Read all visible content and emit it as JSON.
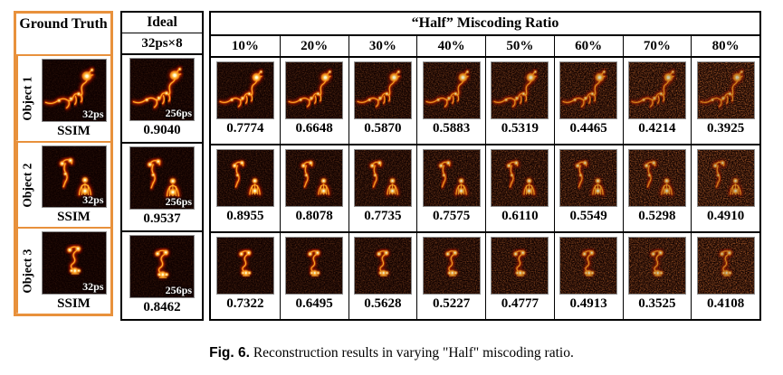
{
  "ground_truth": {
    "header": "Ground Truth",
    "object_labels": [
      "Object 1",
      "Object 2",
      "Object 3"
    ],
    "ssim_label": "SSIM",
    "exposure_label": "32ps"
  },
  "ideal": {
    "header": "Ideal",
    "subheader": "32ps×8",
    "exposure_label": "256ps",
    "ssim_values": [
      "0.9040",
      "0.9537",
      "0.8462"
    ]
  },
  "miscoding": {
    "header": "“Half” Miscoding Ratio",
    "columns": [
      "10%",
      "20%",
      "30%",
      "40%",
      "50%",
      "60%",
      "70%",
      "80%"
    ],
    "rows": [
      {
        "object": "Object 1",
        "ssim_values": [
          "0.7774",
          "0.6648",
          "0.5870",
          "0.5883",
          "0.5319",
          "0.4465",
          "0.4214",
          "0.3925"
        ]
      },
      {
        "object": "Object 2",
        "ssim_values": [
          "0.8955",
          "0.8078",
          "0.7735",
          "0.7575",
          "0.6110",
          "0.5549",
          "0.5298",
          "0.4910"
        ]
      },
      {
        "object": "Object 3",
        "ssim_values": [
          "0.7322",
          "0.6495",
          "0.5628",
          "0.5227",
          "0.4777",
          "0.4913",
          "0.3525",
          "0.4108"
        ]
      }
    ]
  },
  "caption": {
    "label": "Fig. 6.",
    "text": "Reconstruction results in varying \"Half\" miscoding ratio."
  },
  "colors": {
    "ground_truth_border": "#E8913C",
    "table_border": "#000000",
    "image_background": "#0d0000",
    "image_ember": "#8f1600",
    "image_glow": "#e34a00",
    "image_hot": "#ffb92e",
    "image_core": "#fffbe0"
  }
}
